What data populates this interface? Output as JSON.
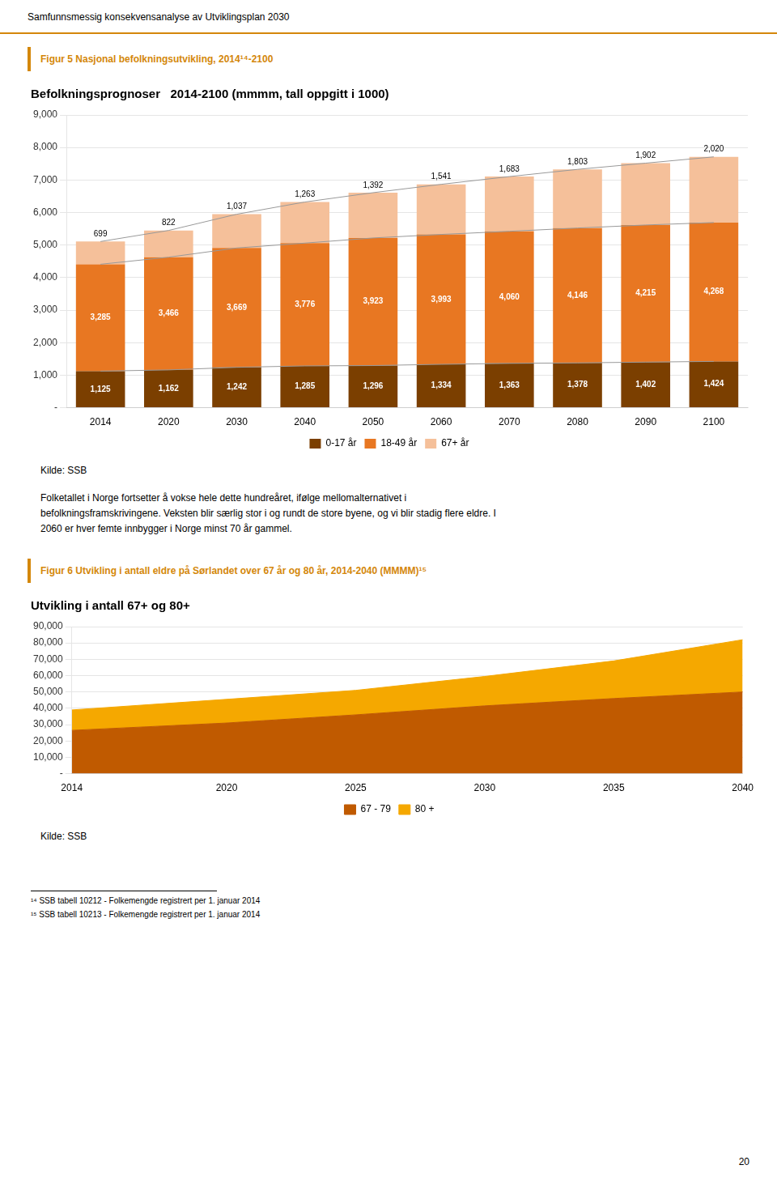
{
  "chart_data": [
    {
      "type": "bar",
      "stacked": true,
      "title": "Befolkningsprognoser   2014-2100 (mmmm, tall oppgitt i 1000)",
      "subtitle": "Figur 5 Nasjonal befolkningsutvikling, 2014¹⁴-2100",
      "categories": [
        2014,
        2020,
        2030,
        2040,
        2050,
        2060,
        2070,
        2080,
        2090,
        2100
      ],
      "series": [
        {
          "name": "0-17 år",
          "color": "#7B3F00",
          "values": [
            1125,
            1162,
            1242,
            1285,
            1296,
            1334,
            1363,
            1378,
            1402,
            1424
          ],
          "value_labels": [
            "1,125",
            "1,162",
            "1,242",
            "1,285",
            "1,296",
            "1,334",
            "1,363",
            "1,378",
            "1,402",
            "1,424"
          ]
        },
        {
          "name": "18-49 år",
          "color": "#E87722",
          "values": [
            3285,
            3466,
            3669,
            3776,
            3923,
            3993,
            4060,
            4146,
            4215,
            4268
          ],
          "value_labels": [
            "3,285",
            "3,466",
            "3,669",
            "3,776",
            "3,923",
            "3,993",
            "4,060",
            "4,146",
            "4,215",
            "4,268"
          ]
        },
        {
          "name": "67+ år",
          "color": "#F5C09A",
          "values": [
            699,
            822,
            1037,
            1263,
            1392,
            1541,
            1683,
            1803,
            1902,
            2020
          ],
          "value_labels": [
            "699",
            "822",
            "1,037",
            "1,263",
            "1,392",
            "1,541",
            "1,683",
            "1,803",
            "1,902",
            "2,020"
          ]
        }
      ],
      "ylim": [
        0,
        9000
      ],
      "yticks": [
        {
          "value": 0,
          "label": "-"
        },
        {
          "value": 1000,
          "label": "1,000"
        },
        {
          "value": 2000,
          "label": "2,000"
        },
        {
          "value": 3000,
          "label": "3,000"
        },
        {
          "value": 4000,
          "label": "4,000"
        },
        {
          "value": 5000,
          "label": "5,000"
        },
        {
          "value": 6000,
          "label": "6,000"
        },
        {
          "value": 7000,
          "label": "7,000"
        },
        {
          "value": 8000,
          "label": "8,000"
        },
        {
          "value": 9000,
          "label": "9,000"
        }
      ],
      "grid": true,
      "legend": "bottom",
      "data_labels": true,
      "annotations": [
        "Samfunnsmessig konsekvensanalyse av Utviklingsplan 2030",
        "Kilde: SSB",
        "Folketallet i Norge fortsetter å vokse hele dette hundreåret, ifølge mellomalternativet i\nbefolkningsframskrivingene. Veksten blir særlig stor i og rundt de store byene, og vi blir stadig flere eldre. I\n2060 er hver femte innbygger i Norge minst 70 år gammel."
      ]
    },
    {
      "type": "area",
      "stacked": true,
      "title": "Utvikling i antall 67+ og 80+",
      "subtitle": "Figur 6 Utvikling i antall eldre på Sørlandet over 67 år og 80 år, 2014-2040 (MMMM)¹⁵",
      "x": [
        2014,
        2020,
        2025,
        2030,
        2035,
        2040
      ],
      "series": [
        {
          "name": "67 - 79",
          "color": "#C05A00",
          "values": [
            26500,
            31000,
            36000,
            41500,
            46000,
            50000
          ]
        },
        {
          "name": "80 +",
          "color": "#F5A800",
          "values": [
            12500,
            14500,
            15000,
            18000,
            23000,
            32000
          ]
        }
      ],
      "xlim": [
        2014,
        2040
      ],
      "xticks": [
        2014,
        2020,
        2025,
        2030,
        2035,
        2040
      ],
      "ylim": [
        0,
        90000
      ],
      "yticks": [
        {
          "value": 0,
          "label": "-"
        },
        {
          "value": 10000,
          "label": "10,000"
        },
        {
          "value": 20000,
          "label": "20,000"
        },
        {
          "value": 30000,
          "label": "30,000"
        },
        {
          "value": 40000,
          "label": "40,000"
        },
        {
          "value": 50000,
          "label": "50,000"
        },
        {
          "value": 60000,
          "label": "60,000"
        },
        {
          "value": 70000,
          "label": "70,000"
        },
        {
          "value": 80000,
          "label": "80,000"
        },
        {
          "value": 90000,
          "label": "90,000"
        }
      ],
      "grid": true,
      "legend": "bottom",
      "annotations": [
        "Kilde: SSB",
        "¹⁴ SSB tabell 10212 - Folkemengde registrert per 1. januar 2014",
        "¹⁵ SSB tabell 10213 - Folkemengde registrert per 1. januar 2014",
        "20"
      ]
    }
  ]
}
